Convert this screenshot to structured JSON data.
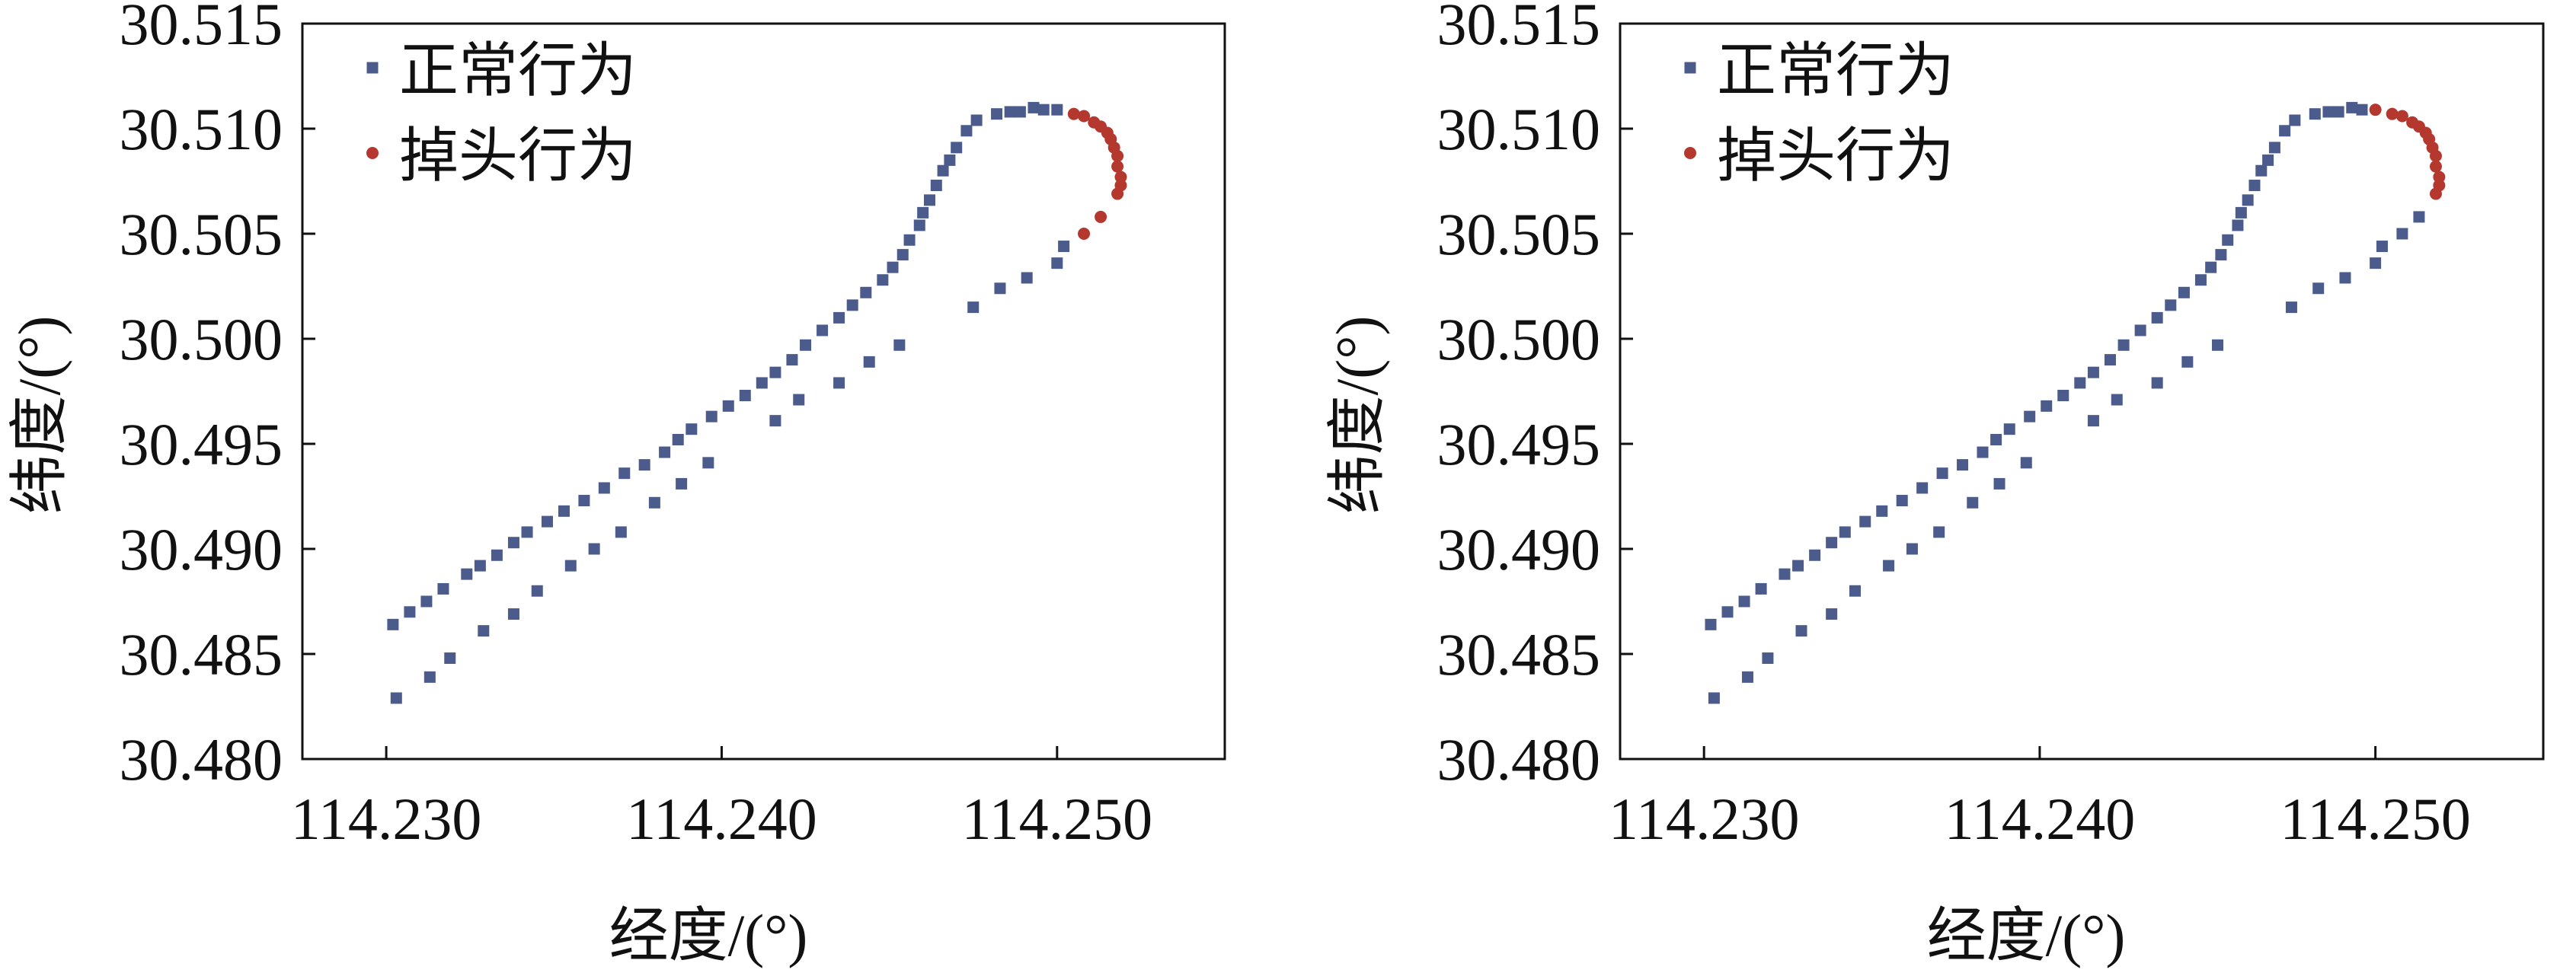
{
  "chart_data": [
    {
      "type": "scatter",
      "xlabel": "经度/(°)",
      "ylabel": "纬度/(°)",
      "xlim": [
        114.2275,
        114.255
      ],
      "ylim": [
        30.48,
        30.515
      ],
      "xticks": [
        "114.230",
        "114.240",
        "114.250"
      ],
      "yticks": [
        "30.480",
        "30.485",
        "30.490",
        "30.495",
        "30.500",
        "30.505",
        "30.510",
        "30.515"
      ],
      "grid": false,
      "legend_position": "top-left",
      "series": [
        {
          "name": "正常行为",
          "marker": "square",
          "color": "#4a5b8c",
          "x": [
            114.2302,
            114.2307,
            114.2312,
            114.2317,
            114.2324,
            114.2328,
            114.2333,
            114.2338,
            114.2342,
            114.2348,
            114.2353,
            114.2359,
            114.2365,
            114.2371,
            114.2377,
            114.2383,
            114.2387,
            114.2391,
            114.2397,
            114.2402,
            114.2407,
            114.2412,
            114.2416,
            114.2421,
            114.2425,
            114.243,
            114.2435,
            114.2439,
            114.2443,
            114.2448,
            114.2451,
            114.2454,
            114.2456,
            114.2459,
            114.246,
            114.2462,
            114.2464,
            114.2466,
            114.2468,
            114.247,
            114.2473,
            114.2476,
            114.2482,
            114.2486,
            114.2489,
            114.2493,
            114.2496,
            114.25,
            114.2502,
            114.25,
            114.2491,
            114.2483,
            114.2475,
            114.2453,
            114.2444,
            114.2435,
            114.2423,
            114.2416,
            114.2396,
            114.2388,
            114.238,
            114.237,
            114.2362,
            114.2355,
            114.2345,
            114.2338,
            114.2329,
            114.2319,
            114.2313,
            114.2303
          ],
          "y": [
            30.4864,
            30.487,
            30.4875,
            30.4881,
            30.4888,
            30.4892,
            30.4897,
            30.4903,
            30.4908,
            30.4913,
            30.4918,
            30.4923,
            30.4929,
            30.4936,
            30.494,
            30.4946,
            30.4952,
            30.4957,
            30.4963,
            30.4968,
            30.4973,
            30.4979,
            30.4984,
            30.499,
            30.4997,
            30.5004,
            30.501,
            30.5016,
            30.5022,
            30.5028,
            30.5034,
            30.504,
            30.5047,
            30.5054,
            30.506,
            30.5066,
            30.5073,
            30.508,
            30.5085,
            30.5091,
            30.5099,
            30.5104,
            30.5107,
            30.5108,
            30.5108,
            30.511,
            30.5109,
            30.5109,
            30.5044,
            30.5036,
            30.5029,
            30.5024,
            30.5015,
            30.4997,
            30.4989,
            30.4979,
            30.4971,
            30.4961,
            30.4941,
            30.4931,
            30.4922,
            30.4908,
            30.49,
            30.4892,
            30.488,
            30.4869,
            30.4861,
            30.4848,
            30.4839,
            30.4829
          ]
        },
        {
          "name": "掉头行为",
          "marker": "circle",
          "color": "#b4382e",
          "x": [
            114.2505,
            114.2508,
            114.2511,
            114.2513,
            114.2515,
            114.2516,
            114.2517,
            114.2518,
            114.2518,
            114.2519,
            114.2519,
            114.2518,
            114.2513,
            114.2508
          ],
          "y": [
            30.5107,
            30.5106,
            30.5103,
            30.5101,
            30.5098,
            30.5095,
            30.5091,
            30.5087,
            30.5082,
            30.5077,
            30.5073,
            30.5069,
            30.5058,
            30.505
          ]
        }
      ]
    },
    {
      "type": "scatter",
      "xlabel": "经度/(°)",
      "ylabel": "纬度/(°)",
      "xlim": [
        114.2275,
        114.255
      ],
      "ylim": [
        30.48,
        30.515
      ],
      "xticks": [
        "114.230",
        "114.240",
        "114.250"
      ],
      "yticks": [
        "30.480",
        "30.485",
        "30.490",
        "30.495",
        "30.500",
        "30.505",
        "30.510",
        "30.515"
      ],
      "grid": false,
      "legend_position": "top-left",
      "series": [
        {
          "name": "正常行为",
          "marker": "square",
          "color": "#4a5b8c",
          "x": [
            114.2302,
            114.2307,
            114.2312,
            114.2317,
            114.2324,
            114.2328,
            114.2333,
            114.2338,
            114.2342,
            114.2348,
            114.2353,
            114.2359,
            114.2365,
            114.2371,
            114.2377,
            114.2383,
            114.2387,
            114.2391,
            114.2397,
            114.2402,
            114.2407,
            114.2412,
            114.2416,
            114.2421,
            114.2425,
            114.243,
            114.2435,
            114.2439,
            114.2443,
            114.2448,
            114.2451,
            114.2454,
            114.2456,
            114.2459,
            114.246,
            114.2462,
            114.2464,
            114.2466,
            114.2468,
            114.247,
            114.2473,
            114.2476,
            114.2482,
            114.2486,
            114.2489,
            114.2493,
            114.2496,
            114.2513,
            114.2508,
            114.2502,
            114.25,
            114.2491,
            114.2483,
            114.2475,
            114.2453,
            114.2444,
            114.2435,
            114.2423,
            114.2416,
            114.2396,
            114.2388,
            114.238,
            114.237,
            114.2362,
            114.2355,
            114.2345,
            114.2338,
            114.2329,
            114.2319,
            114.2313,
            114.2303
          ],
          "y": [
            30.4864,
            30.487,
            30.4875,
            30.4881,
            30.4888,
            30.4892,
            30.4897,
            30.4903,
            30.4908,
            30.4913,
            30.4918,
            30.4923,
            30.4929,
            30.4936,
            30.494,
            30.4946,
            30.4952,
            30.4957,
            30.4963,
            30.4968,
            30.4973,
            30.4979,
            30.4984,
            30.499,
            30.4997,
            30.5004,
            30.501,
            30.5016,
            30.5022,
            30.5028,
            30.5034,
            30.504,
            30.5047,
            30.5054,
            30.506,
            30.5066,
            30.5073,
            30.508,
            30.5085,
            30.5091,
            30.5099,
            30.5104,
            30.5107,
            30.5108,
            30.5108,
            30.511,
            30.5109,
            30.5058,
            30.505,
            30.5044,
            30.5036,
            30.5029,
            30.5024,
            30.5015,
            30.4997,
            30.4989,
            30.4979,
            30.4971,
            30.4961,
            30.4941,
            30.4931,
            30.4922,
            30.4908,
            30.49,
            30.4892,
            30.488,
            30.4869,
            30.4861,
            30.4848,
            30.4839,
            30.4829
          ]
        },
        {
          "name": "掉头行为",
          "marker": "circle",
          "color": "#b4382e",
          "x": [
            114.25,
            114.2505,
            114.2508,
            114.2511,
            114.2513,
            114.2515,
            114.2516,
            114.2517,
            114.2518,
            114.2518,
            114.2519,
            114.2519,
            114.2518
          ],
          "y": [
            30.5109,
            30.5107,
            30.5106,
            30.5103,
            30.5101,
            30.5098,
            30.5095,
            30.5091,
            30.5087,
            30.5082,
            30.5077,
            30.5073,
            30.5069
          ]
        }
      ]
    }
  ]
}
